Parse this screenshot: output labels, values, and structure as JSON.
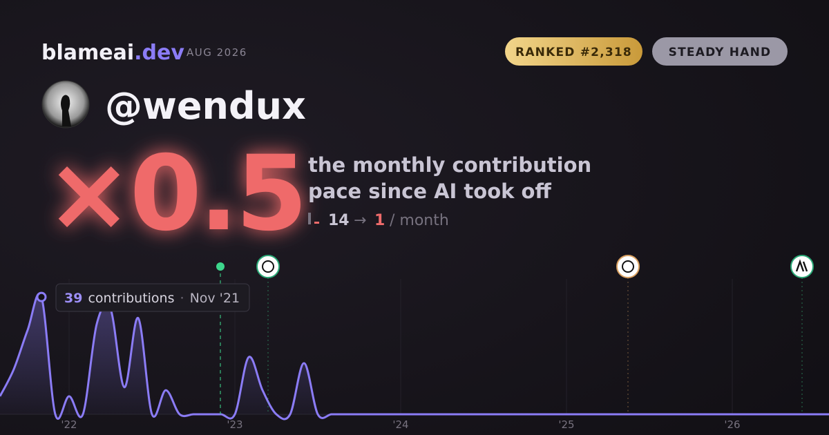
{
  "brand": {
    "name": "blameai",
    "tld": ".dev",
    "date": "AUG 2026"
  },
  "badges": [
    "RANKED #2,318",
    "STEADY HAND"
  ],
  "username": "@wendux",
  "multiplier": "×0.5",
  "description": [
    "the monthly contribution",
    "pace since AI took off"
  ],
  "pace": {
    "before": "14",
    "arrow": "→",
    "after": "1",
    "unit": "/ month"
  },
  "chart_data": {
    "type": "line",
    "categories": [
      null,
      null,
      null,
      null,
      null,
      "'22",
      null,
      null,
      null,
      null,
      null,
      null,
      null,
      null,
      null,
      null,
      null,
      "'23",
      null,
      null,
      null,
      null,
      null,
      null,
      null,
      null,
      null,
      null,
      null,
      "'24",
      null,
      null,
      null,
      null,
      null,
      null,
      null,
      null,
      null,
      null,
      null,
      "'25",
      null,
      null,
      null,
      null,
      null,
      null,
      null,
      null,
      null,
      null,
      null,
      "'26",
      null,
      null,
      null,
      null,
      null,
      null,
      null
    ],
    "series": [
      {
        "name": "contributions",
        "color": "#8b7cf6",
        "values": [
          6,
          15,
          28,
          39,
          0,
          6,
          0,
          30,
          35,
          9,
          32,
          0,
          8,
          0,
          0,
          0,
          0,
          0,
          19,
          8,
          0,
          0,
          17,
          0,
          0,
          0,
          0,
          0,
          0,
          0,
          0,
          0,
          0,
          0,
          0,
          0,
          0,
          0,
          0,
          0,
          0,
          0,
          0,
          0,
          0,
          0,
          0,
          0,
          0,
          0,
          0,
          0,
          0,
          0,
          0,
          0,
          0,
          0,
          0,
          0,
          0
        ]
      }
    ],
    "ylim": [
      0,
      45
    ],
    "tooltip": {
      "count": "39",
      "unit": "contributions",
      "date": "Nov '21"
    }
  }
}
